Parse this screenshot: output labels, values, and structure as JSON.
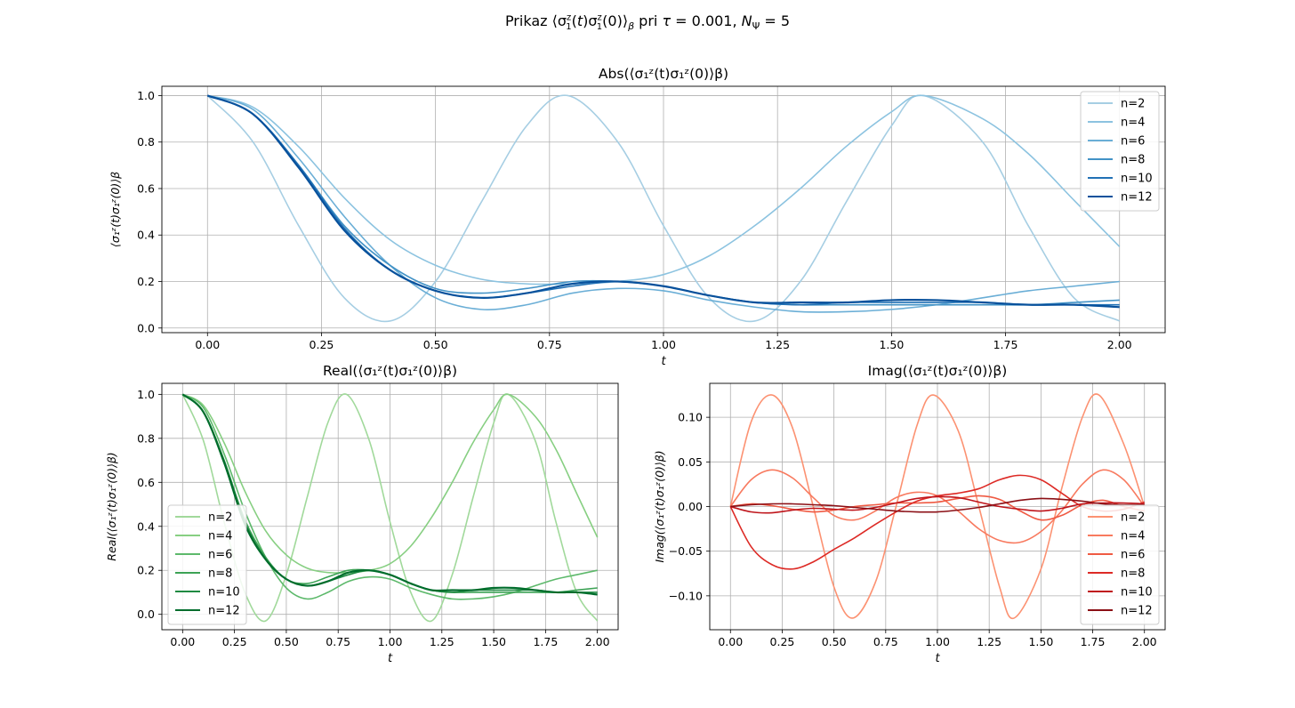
{
  "figure": {
    "suptitle": "Prikaz ⟨σ₁ᶻ(t)σ₁ᶻ(0)⟩β pri τ = 0.001, NΨ = 5"
  },
  "chart_data": [
    {
      "type": "line",
      "title": "Abs(⟨σ₁ᶻ(t)σ₁ᶻ(0)⟩β)",
      "xlabel": "t",
      "ylabel": "⟨σ₁ᶻ(t)σ₁ᶻ(0)⟩β",
      "xlim": [
        -0.1,
        2.1
      ],
      "ylim": [
        -0.02,
        1.04
      ],
      "xticks": [
        0.0,
        0.25,
        0.5,
        0.75,
        1.0,
        1.25,
        1.5,
        1.75,
        2.0
      ],
      "xtick_labels": [
        "0.00",
        "0.25",
        "0.50",
        "0.75",
        "1.00",
        "1.25",
        "1.50",
        "1.75",
        "2.00"
      ],
      "yticks": [
        0.0,
        0.2,
        0.4,
        0.6,
        0.8,
        1.0
      ],
      "ytick_labels": [
        "0.0",
        "0.2",
        "0.4",
        "0.6",
        "0.8",
        "1.0"
      ],
      "grid": true,
      "legend": "upper right",
      "series": [
        {
          "name": "n=2",
          "color": "#a6cee3",
          "x": [
            0,
            0.1,
            0.2,
            0.3,
            0.4,
            0.5,
            0.6,
            0.7,
            0.79,
            0.9,
            1.0,
            1.1,
            1.2,
            1.3,
            1.4,
            1.5,
            1.57,
            1.7,
            1.8,
            1.9,
            2.0
          ],
          "y": [
            1.0,
            0.8,
            0.44,
            0.13,
            0.03,
            0.2,
            0.54,
            0.87,
            1.0,
            0.8,
            0.44,
            0.13,
            0.03,
            0.2,
            0.54,
            0.87,
            1.0,
            0.8,
            0.44,
            0.13,
            0.03
          ]
        },
        {
          "name": "n=4",
          "color": "#8cc3e0",
          "x": [
            0,
            0.1,
            0.2,
            0.3,
            0.4,
            0.5,
            0.6,
            0.7,
            0.8,
            0.9,
            1.0,
            1.1,
            1.2,
            1.3,
            1.4,
            1.5,
            1.57,
            1.7,
            1.8,
            1.9,
            2.0
          ],
          "y": [
            1.0,
            0.95,
            0.78,
            0.56,
            0.38,
            0.27,
            0.21,
            0.19,
            0.19,
            0.2,
            0.23,
            0.31,
            0.44,
            0.6,
            0.78,
            0.93,
            1.0,
            0.9,
            0.75,
            0.55,
            0.35
          ]
        },
        {
          "name": "n=6",
          "color": "#6aaed6",
          "x": [
            0,
            0.1,
            0.2,
            0.3,
            0.4,
            0.5,
            0.6,
            0.7,
            0.8,
            0.9,
            1.0,
            1.1,
            1.2,
            1.3,
            1.4,
            1.5,
            1.6,
            1.7,
            1.8,
            1.9,
            2.0
          ],
          "y": [
            1.0,
            0.94,
            0.73,
            0.48,
            0.27,
            0.13,
            0.08,
            0.1,
            0.15,
            0.17,
            0.16,
            0.12,
            0.09,
            0.07,
            0.07,
            0.08,
            0.1,
            0.13,
            0.16,
            0.18,
            0.2
          ]
        },
        {
          "name": "n=8",
          "color": "#4292c6",
          "x": [
            0,
            0.1,
            0.2,
            0.3,
            0.4,
            0.5,
            0.6,
            0.7,
            0.8,
            0.9,
            1.0,
            1.1,
            1.2,
            1.3,
            1.4,
            1.5,
            1.6,
            1.7,
            1.8,
            1.9,
            2.0
          ],
          "y": [
            1.0,
            0.92,
            0.7,
            0.44,
            0.27,
            0.17,
            0.15,
            0.17,
            0.2,
            0.2,
            0.18,
            0.14,
            0.11,
            0.1,
            0.1,
            0.1,
            0.1,
            0.1,
            0.1,
            0.11,
            0.12
          ]
        },
        {
          "name": "n=10",
          "color": "#2171b5",
          "x": [
            0,
            0.1,
            0.2,
            0.3,
            0.4,
            0.5,
            0.6,
            0.7,
            0.8,
            0.9,
            1.0,
            1.1,
            1.2,
            1.3,
            1.4,
            1.5,
            1.6,
            1.7,
            1.8,
            1.9,
            2.0
          ],
          "y": [
            1.0,
            0.92,
            0.7,
            0.43,
            0.25,
            0.16,
            0.13,
            0.15,
            0.18,
            0.2,
            0.18,
            0.14,
            0.11,
            0.1,
            0.11,
            0.11,
            0.11,
            0.11,
            0.1,
            0.1,
            0.1
          ]
        },
        {
          "name": "n=12",
          "color": "#08519c",
          "x": [
            0,
            0.1,
            0.2,
            0.3,
            0.4,
            0.5,
            0.6,
            0.7,
            0.8,
            0.9,
            1.0,
            1.1,
            1.2,
            1.3,
            1.4,
            1.5,
            1.6,
            1.7,
            1.8,
            1.9,
            2.0
          ],
          "y": [
            1.0,
            0.92,
            0.69,
            0.42,
            0.25,
            0.16,
            0.13,
            0.15,
            0.19,
            0.2,
            0.18,
            0.14,
            0.11,
            0.11,
            0.11,
            0.12,
            0.12,
            0.11,
            0.1,
            0.1,
            0.09
          ]
        }
      ]
    },
    {
      "type": "line",
      "title": "Real(⟨σ₁ᶻ(t)σ₁ᶻ(0)⟩β)",
      "xlabel": "t",
      "ylabel": "Real(⟨σ₁ᶻ(t)σ₁ᶻ(0)⟩β)",
      "xlim": [
        -0.1,
        2.1
      ],
      "ylim": [
        -0.07,
        1.05
      ],
      "xticks": [
        0.0,
        0.25,
        0.5,
        0.75,
        1.0,
        1.25,
        1.5,
        1.75,
        2.0
      ],
      "xtick_labels": [
        "0.00",
        "0.25",
        "0.50",
        "0.75",
        "1.00",
        "1.25",
        "1.50",
        "1.75",
        "2.00"
      ],
      "yticks": [
        0.0,
        0.2,
        0.4,
        0.6,
        0.8,
        1.0
      ],
      "ytick_labels": [
        "0.0",
        "0.2",
        "0.4",
        "0.6",
        "0.8",
        "1.0"
      ],
      "grid": true,
      "legend": "lower left",
      "series": [
        {
          "name": "n=2",
          "color": "#a1d99b",
          "x": [
            0,
            0.1,
            0.2,
            0.3,
            0.4,
            0.5,
            0.6,
            0.7,
            0.79,
            0.9,
            1.0,
            1.1,
            1.2,
            1.3,
            1.4,
            1.5,
            1.57,
            1.7,
            1.8,
            1.9,
            2.0
          ],
          "y": [
            1.0,
            0.79,
            0.42,
            0.1,
            -0.03,
            0.18,
            0.53,
            0.87,
            1.0,
            0.79,
            0.42,
            0.1,
            -0.03,
            0.18,
            0.53,
            0.87,
            1.0,
            0.79,
            0.42,
            0.1,
            -0.03
          ]
        },
        {
          "name": "n=4",
          "color": "#87cf82",
          "x": [
            0,
            0.1,
            0.2,
            0.3,
            0.4,
            0.5,
            0.6,
            0.7,
            0.8,
            0.9,
            1.0,
            1.1,
            1.2,
            1.3,
            1.4,
            1.5,
            1.57,
            1.7,
            1.8,
            1.9,
            2.0
          ],
          "y": [
            1.0,
            0.95,
            0.78,
            0.56,
            0.38,
            0.27,
            0.21,
            0.19,
            0.19,
            0.2,
            0.23,
            0.31,
            0.44,
            0.6,
            0.78,
            0.93,
            1.0,
            0.9,
            0.75,
            0.55,
            0.35
          ]
        },
        {
          "name": "n=6",
          "color": "#5db96b",
          "x": [
            0,
            0.1,
            0.2,
            0.3,
            0.4,
            0.5,
            0.6,
            0.7,
            0.8,
            0.9,
            1.0,
            1.1,
            1.2,
            1.3,
            1.4,
            1.5,
            1.6,
            1.7,
            1.8,
            1.9,
            2.0
          ],
          "y": [
            1.0,
            0.94,
            0.73,
            0.47,
            0.26,
            0.12,
            0.07,
            0.1,
            0.15,
            0.17,
            0.16,
            0.12,
            0.09,
            0.07,
            0.07,
            0.08,
            0.1,
            0.13,
            0.16,
            0.18,
            0.2
          ]
        },
        {
          "name": "n=8",
          "color": "#3ca255",
          "x": [
            0,
            0.1,
            0.2,
            0.3,
            0.4,
            0.5,
            0.6,
            0.7,
            0.8,
            0.9,
            1.0,
            1.1,
            1.2,
            1.3,
            1.4,
            1.5,
            1.6,
            1.7,
            1.8,
            1.9,
            2.0
          ],
          "y": [
            1.0,
            0.92,
            0.7,
            0.43,
            0.26,
            0.16,
            0.14,
            0.17,
            0.2,
            0.2,
            0.18,
            0.14,
            0.11,
            0.1,
            0.1,
            0.1,
            0.1,
            0.1,
            0.1,
            0.11,
            0.12
          ]
        },
        {
          "name": "n=10",
          "color": "#1f8a42",
          "x": [
            0,
            0.1,
            0.2,
            0.3,
            0.4,
            0.5,
            0.6,
            0.7,
            0.8,
            0.9,
            1.0,
            1.1,
            1.2,
            1.3,
            1.4,
            1.5,
            1.6,
            1.7,
            1.8,
            1.9,
            2.0
          ],
          "y": [
            1.0,
            0.92,
            0.7,
            0.42,
            0.25,
            0.16,
            0.13,
            0.15,
            0.18,
            0.2,
            0.18,
            0.14,
            0.11,
            0.1,
            0.11,
            0.11,
            0.11,
            0.11,
            0.1,
            0.1,
            0.1
          ]
        },
        {
          "name": "n=12",
          "color": "#006d2c",
          "x": [
            0,
            0.1,
            0.2,
            0.3,
            0.4,
            0.5,
            0.6,
            0.7,
            0.8,
            0.9,
            1.0,
            1.1,
            1.2,
            1.3,
            1.4,
            1.5,
            1.6,
            1.7,
            1.8,
            1.9,
            2.0
          ],
          "y": [
            1.0,
            0.92,
            0.69,
            0.41,
            0.25,
            0.16,
            0.13,
            0.15,
            0.19,
            0.2,
            0.18,
            0.14,
            0.11,
            0.11,
            0.11,
            0.12,
            0.12,
            0.11,
            0.1,
            0.1,
            0.09
          ]
        }
      ]
    },
    {
      "type": "line",
      "title": "Imag(⟨σ₁ᶻ(t)σ₁ᶻ(0)⟩β)",
      "xlabel": "t",
      "ylabel": "Imag(⟨σ₁ᶻ(t)σ₁ᶻ(0)⟩β)",
      "xlim": [
        -0.1,
        2.1
      ],
      "ylim": [
        -0.138,
        0.138
      ],
      "xticks": [
        0.0,
        0.25,
        0.5,
        0.75,
        1.0,
        1.25,
        1.5,
        1.75,
        2.0
      ],
      "xtick_labels": [
        "0.00",
        "0.25",
        "0.50",
        "0.75",
        "1.00",
        "1.25",
        "1.50",
        "1.75",
        "2.00"
      ],
      "yticks": [
        -0.1,
        -0.05,
        0.0,
        0.05,
        0.1
      ],
      "ytick_labels": [
        "−0.10",
        "−0.05",
        "0.00",
        "0.05",
        "0.10"
      ],
      "grid": true,
      "legend": "lower right",
      "series": [
        {
          "name": "n=2",
          "color": "#fc9272",
          "x": [
            0,
            0.1,
            0.2,
            0.3,
            0.4,
            0.5,
            0.59,
            0.7,
            0.8,
            0.9,
            0.98,
            1.1,
            1.2,
            1.3,
            1.37,
            1.5,
            1.6,
            1.7,
            1.78,
            1.9,
            2.0
          ],
          "y": [
            0.0,
            0.095,
            0.125,
            0.088,
            0.0,
            -0.09,
            -0.125,
            -0.085,
            0.0,
            0.09,
            0.125,
            0.085,
            0.0,
            -0.09,
            -0.125,
            -0.07,
            0.02,
            0.1,
            0.125,
            0.07,
            0.0
          ]
        },
        {
          "name": "n=4",
          "color": "#f87a5f",
          "x": [
            0,
            0.1,
            0.2,
            0.3,
            0.4,
            0.5,
            0.6,
            0.7,
            0.8,
            0.9,
            1.0,
            1.1,
            1.2,
            1.3,
            1.4,
            1.5,
            1.6,
            1.7,
            1.8,
            1.9,
            2.0
          ],
          "y": [
            0.0,
            0.03,
            0.041,
            0.032,
            0.01,
            -0.01,
            -0.015,
            -0.005,
            0.01,
            0.016,
            0.012,
            -0.005,
            -0.025,
            -0.038,
            -0.04,
            -0.028,
            -0.005,
            0.025,
            0.041,
            0.03,
            0.0
          ]
        },
        {
          "name": "n=6",
          "color": "#ef5a43",
          "x": [
            0,
            0.1,
            0.2,
            0.3,
            0.4,
            0.5,
            0.6,
            0.7,
            0.8,
            0.9,
            1.0,
            1.1,
            1.2,
            1.3,
            1.4,
            1.5,
            1.6,
            1.7,
            1.8,
            1.9,
            2.0
          ],
          "y": [
            0.0,
            0.003,
            0.001,
            -0.003,
            -0.006,
            -0.004,
            0.0,
            0.002,
            0.004,
            0.004,
            0.005,
            0.009,
            0.012,
            0.008,
            -0.005,
            -0.015,
            -0.01,
            0.002,
            0.007,
            0.0,
            -0.005
          ]
        },
        {
          "name": "n=8",
          "color": "#dd2a25",
          "x": [
            0,
            0.1,
            0.2,
            0.3,
            0.4,
            0.5,
            0.6,
            0.7,
            0.8,
            0.9,
            1.0,
            1.1,
            1.2,
            1.3,
            1.4,
            1.5,
            1.6,
            1.7,
            1.8,
            1.9,
            2.0
          ],
          "y": [
            0.0,
            -0.045,
            -0.065,
            -0.07,
            -0.062,
            -0.048,
            -0.035,
            -0.02,
            -0.006,
            0.006,
            0.012,
            0.015,
            0.02,
            0.03,
            0.035,
            0.03,
            0.015,
            0.0,
            -0.005,
            -0.003,
            0.005
          ]
        },
        {
          "name": "n=10",
          "color": "#bf151b",
          "x": [
            0,
            0.1,
            0.2,
            0.3,
            0.4,
            0.5,
            0.6,
            0.7,
            0.8,
            0.9,
            1.0,
            1.1,
            1.2,
            1.3,
            1.4,
            1.5,
            1.6,
            1.7,
            1.8,
            1.9,
            2.0
          ],
          "y": [
            0.0,
            -0.006,
            -0.007,
            -0.004,
            -0.002,
            -0.003,
            -0.004,
            -0.001,
            0.004,
            0.009,
            0.011,
            0.01,
            0.005,
            0.0,
            -0.003,
            -0.005,
            -0.002,
            0.003,
            0.004,
            0.004,
            0.003
          ]
        },
        {
          "name": "n=12",
          "color": "#8b0f15",
          "x": [
            0,
            0.1,
            0.2,
            0.3,
            0.4,
            0.5,
            0.6,
            0.7,
            0.8,
            0.9,
            1.0,
            1.1,
            1.2,
            1.3,
            1.4,
            1.5,
            1.6,
            1.7,
            1.8,
            1.9,
            2.0
          ],
          "y": [
            0.0,
            0.002,
            0.003,
            0.003,
            0.002,
            0.001,
            -0.001,
            -0.003,
            -0.005,
            -0.006,
            -0.006,
            -0.004,
            -0.001,
            0.003,
            0.007,
            0.009,
            0.008,
            0.006,
            0.003,
            0.002,
            0.002
          ]
        }
      ]
    }
  ]
}
